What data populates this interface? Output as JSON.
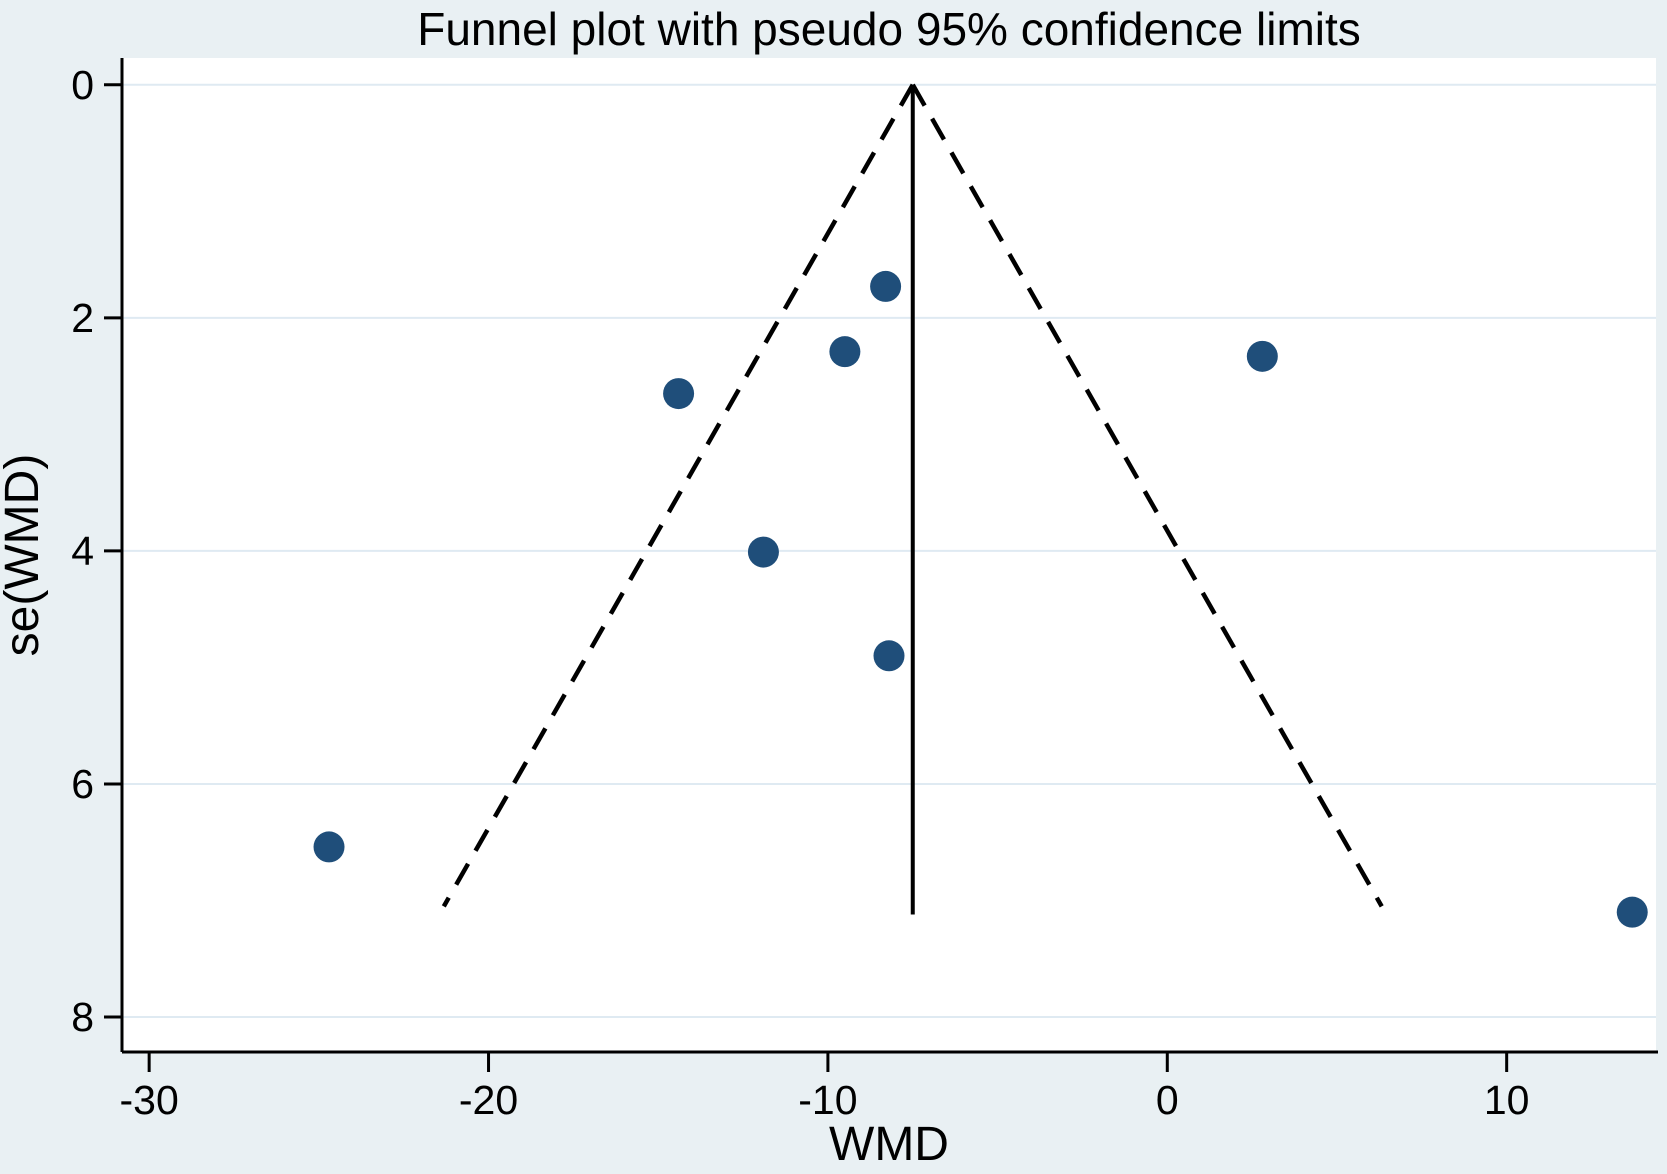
{
  "chart_data": {
    "type": "scatter",
    "title": "Funnel plot with pseudo 95% confidence limits",
    "xlabel": "WMD",
    "ylabel": "se(WMD)",
    "x_ticks": [
      -30,
      -20,
      -10,
      0,
      10
    ],
    "y_ticks": [
      0,
      2,
      4,
      6,
      8
    ],
    "xlim": [
      -30.8,
      14.4
    ],
    "se_lim": [
      -0.23,
      8.3
    ],
    "y_axis_inverted": true,
    "grid": "horizontal-at-y-ticks",
    "legend": "none",
    "pooled_wmd": -7.5,
    "pooled_line": {
      "style": "solid",
      "se_start": 0,
      "se_end": 7.12
    },
    "funnel_limits": {
      "style": "dashed",
      "z": 1.96,
      "se_start": 0,
      "se_end": 7.05
    },
    "points": [
      {
        "wmd": -8.3,
        "se": 1.73
      },
      {
        "wmd": -9.5,
        "se": 2.29
      },
      {
        "wmd": -14.4,
        "se": 2.65
      },
      {
        "wmd": -11.9,
        "se": 4.01
      },
      {
        "wmd": -8.2,
        "se": 4.9
      },
      {
        "wmd": -24.7,
        "se": 6.54
      },
      {
        "wmd": 2.8,
        "se": 2.33
      },
      {
        "wmd": 13.7,
        "se": 7.1
      }
    ],
    "colors": {
      "outer_background": "#e9f0f3",
      "plot_background": "#ffffff",
      "gridline": "#dfeaf2",
      "axis": "#000000",
      "marker": "#1f4e7a",
      "limit_lines": "#000000"
    }
  }
}
